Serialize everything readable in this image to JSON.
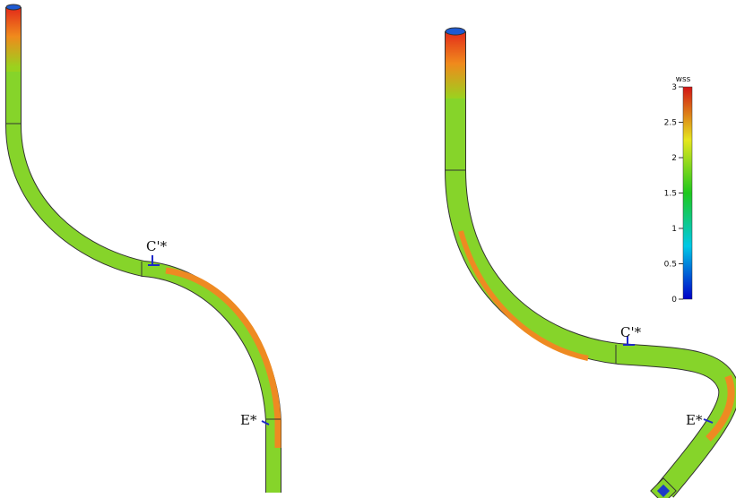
{
  "left_pipe": {
    "label_c": "C'*",
    "label_e": "E*"
  },
  "right_pipe": {
    "label_c": "C'*",
    "label_e": "E*"
  },
  "colorbar": {
    "title": "wss",
    "ticks": [
      0,
      0.5,
      1,
      1.5,
      2,
      2.5,
      3
    ]
  }
}
